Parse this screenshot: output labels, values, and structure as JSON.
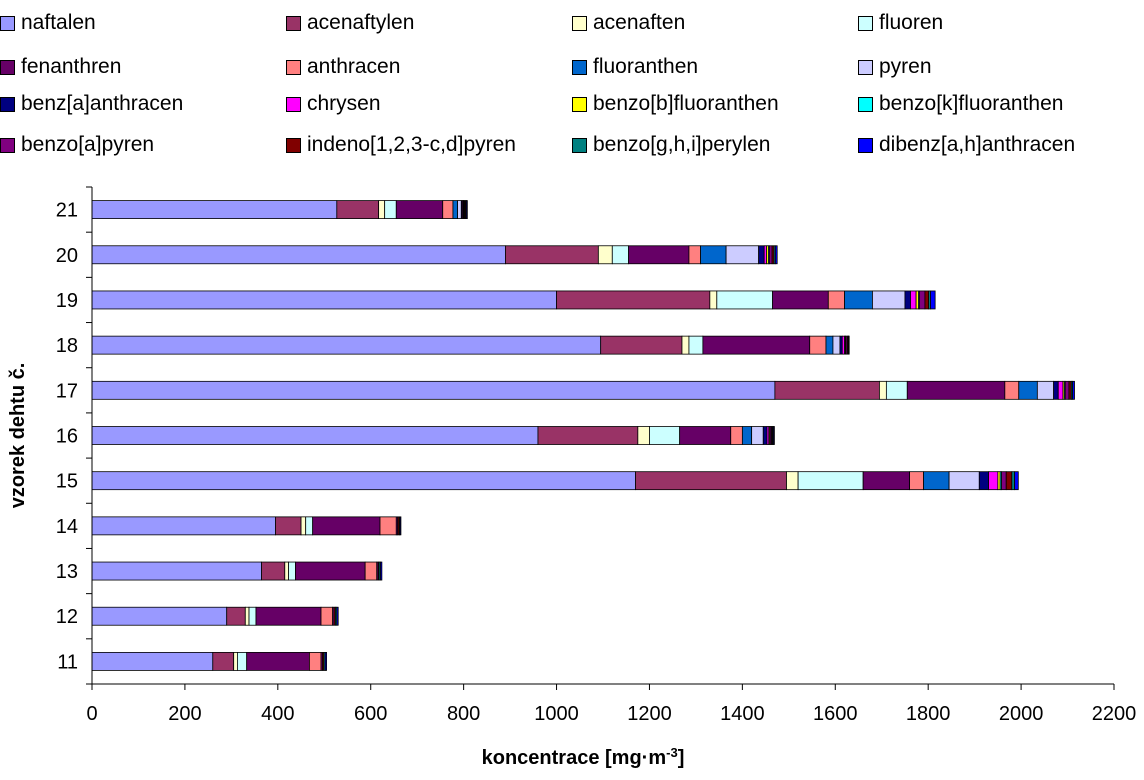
{
  "chart_data": {
    "type": "bar",
    "orientation": "horizontal",
    "stacked": true,
    "xlabel_main": "koncentrace [mg·m",
    "xlabel_sup": "-3",
    "xlabel_end": "]",
    "ylabel": "vzorek dehtu č.",
    "xlim": [
      0,
      2200
    ],
    "xticks": [
      0,
      200,
      400,
      600,
      800,
      1000,
      1200,
      1400,
      1600,
      1800,
      2000,
      2200
    ],
    "categories": [
      "21",
      "20",
      "19",
      "18",
      "17",
      "16",
      "15",
      "14",
      "13",
      "12",
      "11"
    ],
    "legend_position": "top",
    "series": [
      {
        "name": "naftalen",
        "color": "#9999FF",
        "values": [
          527,
          890,
          1000,
          1095,
          1470,
          960,
          1170,
          395,
          365,
          290,
          260
        ]
      },
      {
        "name": "acenaftylen",
        "color": "#993366",
        "values": [
          90,
          200,
          330,
          175,
          225,
          215,
          325,
          55,
          50,
          40,
          45
        ]
      },
      {
        "name": "acenaften",
        "color": "#FFFFCC",
        "values": [
          13,
          30,
          15,
          15,
          15,
          25,
          25,
          10,
          8,
          8,
          8
        ]
      },
      {
        "name": "fluoren",
        "color": "#CCFFFF",
        "values": [
          25,
          35,
          120,
          30,
          45,
          65,
          140,
          15,
          15,
          15,
          20
        ]
      },
      {
        "name": "fenanthren",
        "color": "#660066",
        "values": [
          100,
          130,
          120,
          230,
          210,
          110,
          100,
          145,
          150,
          140,
          135
        ]
      },
      {
        "name": "anthracen",
        "color": "#FF8080",
        "values": [
          22,
          25,
          35,
          35,
          30,
          25,
          30,
          35,
          25,
          25,
          25
        ]
      },
      {
        "name": "fluoranthen",
        "color": "#0066CC",
        "values": [
          10,
          55,
          60,
          15,
          40,
          20,
          55,
          0,
          0,
          0,
          0
        ]
      },
      {
        "name": "pyren",
        "color": "#CCCCFF",
        "values": [
          8,
          70,
          70,
          15,
          35,
          25,
          65,
          0,
          0,
          0,
          0
        ]
      },
      {
        "name": "benz[a]anthracen",
        "color": "#000080",
        "values": [
          2,
          12,
          12,
          5,
          10,
          8,
          20,
          0,
          0,
          0,
          0
        ]
      },
      {
        "name": "chrysen",
        "color": "#FF00FF",
        "values": [
          2,
          5,
          12,
          5,
          10,
          4,
          20,
          0,
          0,
          0,
          0
        ]
      },
      {
        "name": "benzo[b]fluoranthen",
        "color": "#FFFF00",
        "values": [
          1,
          4,
          5,
          2,
          3,
          2,
          5,
          0,
          0,
          0,
          0
        ]
      },
      {
        "name": "benzo[k]fluoranthen",
        "color": "#00FFFF",
        "values": [
          1,
          2,
          2,
          1,
          2,
          1,
          3,
          0,
          0,
          0,
          0
        ]
      },
      {
        "name": "benzo[a]pyren",
        "color": "#800080",
        "values": [
          2,
          6,
          12,
          3,
          8,
          3,
          10,
          3,
          3,
          3,
          3
        ]
      },
      {
        "name": "indeno[1,2,3-c,d]pyren",
        "color": "#800000",
        "values": [
          2,
          4,
          8,
          2,
          5,
          2,
          12,
          3,
          2,
          3,
          3
        ]
      },
      {
        "name": "benzo[g,h,i]perylen",
        "color": "#008080",
        "values": [
          1,
          3,
          4,
          1,
          3,
          2,
          6,
          2,
          3,
          3,
          3
        ]
      },
      {
        "name": "dibenz[a,h]anthracen",
        "color": "#0000FF",
        "values": [
          2,
          4,
          10,
          1,
          4,
          2,
          8,
          2,
          3,
          3,
          3
        ]
      }
    ]
  }
}
